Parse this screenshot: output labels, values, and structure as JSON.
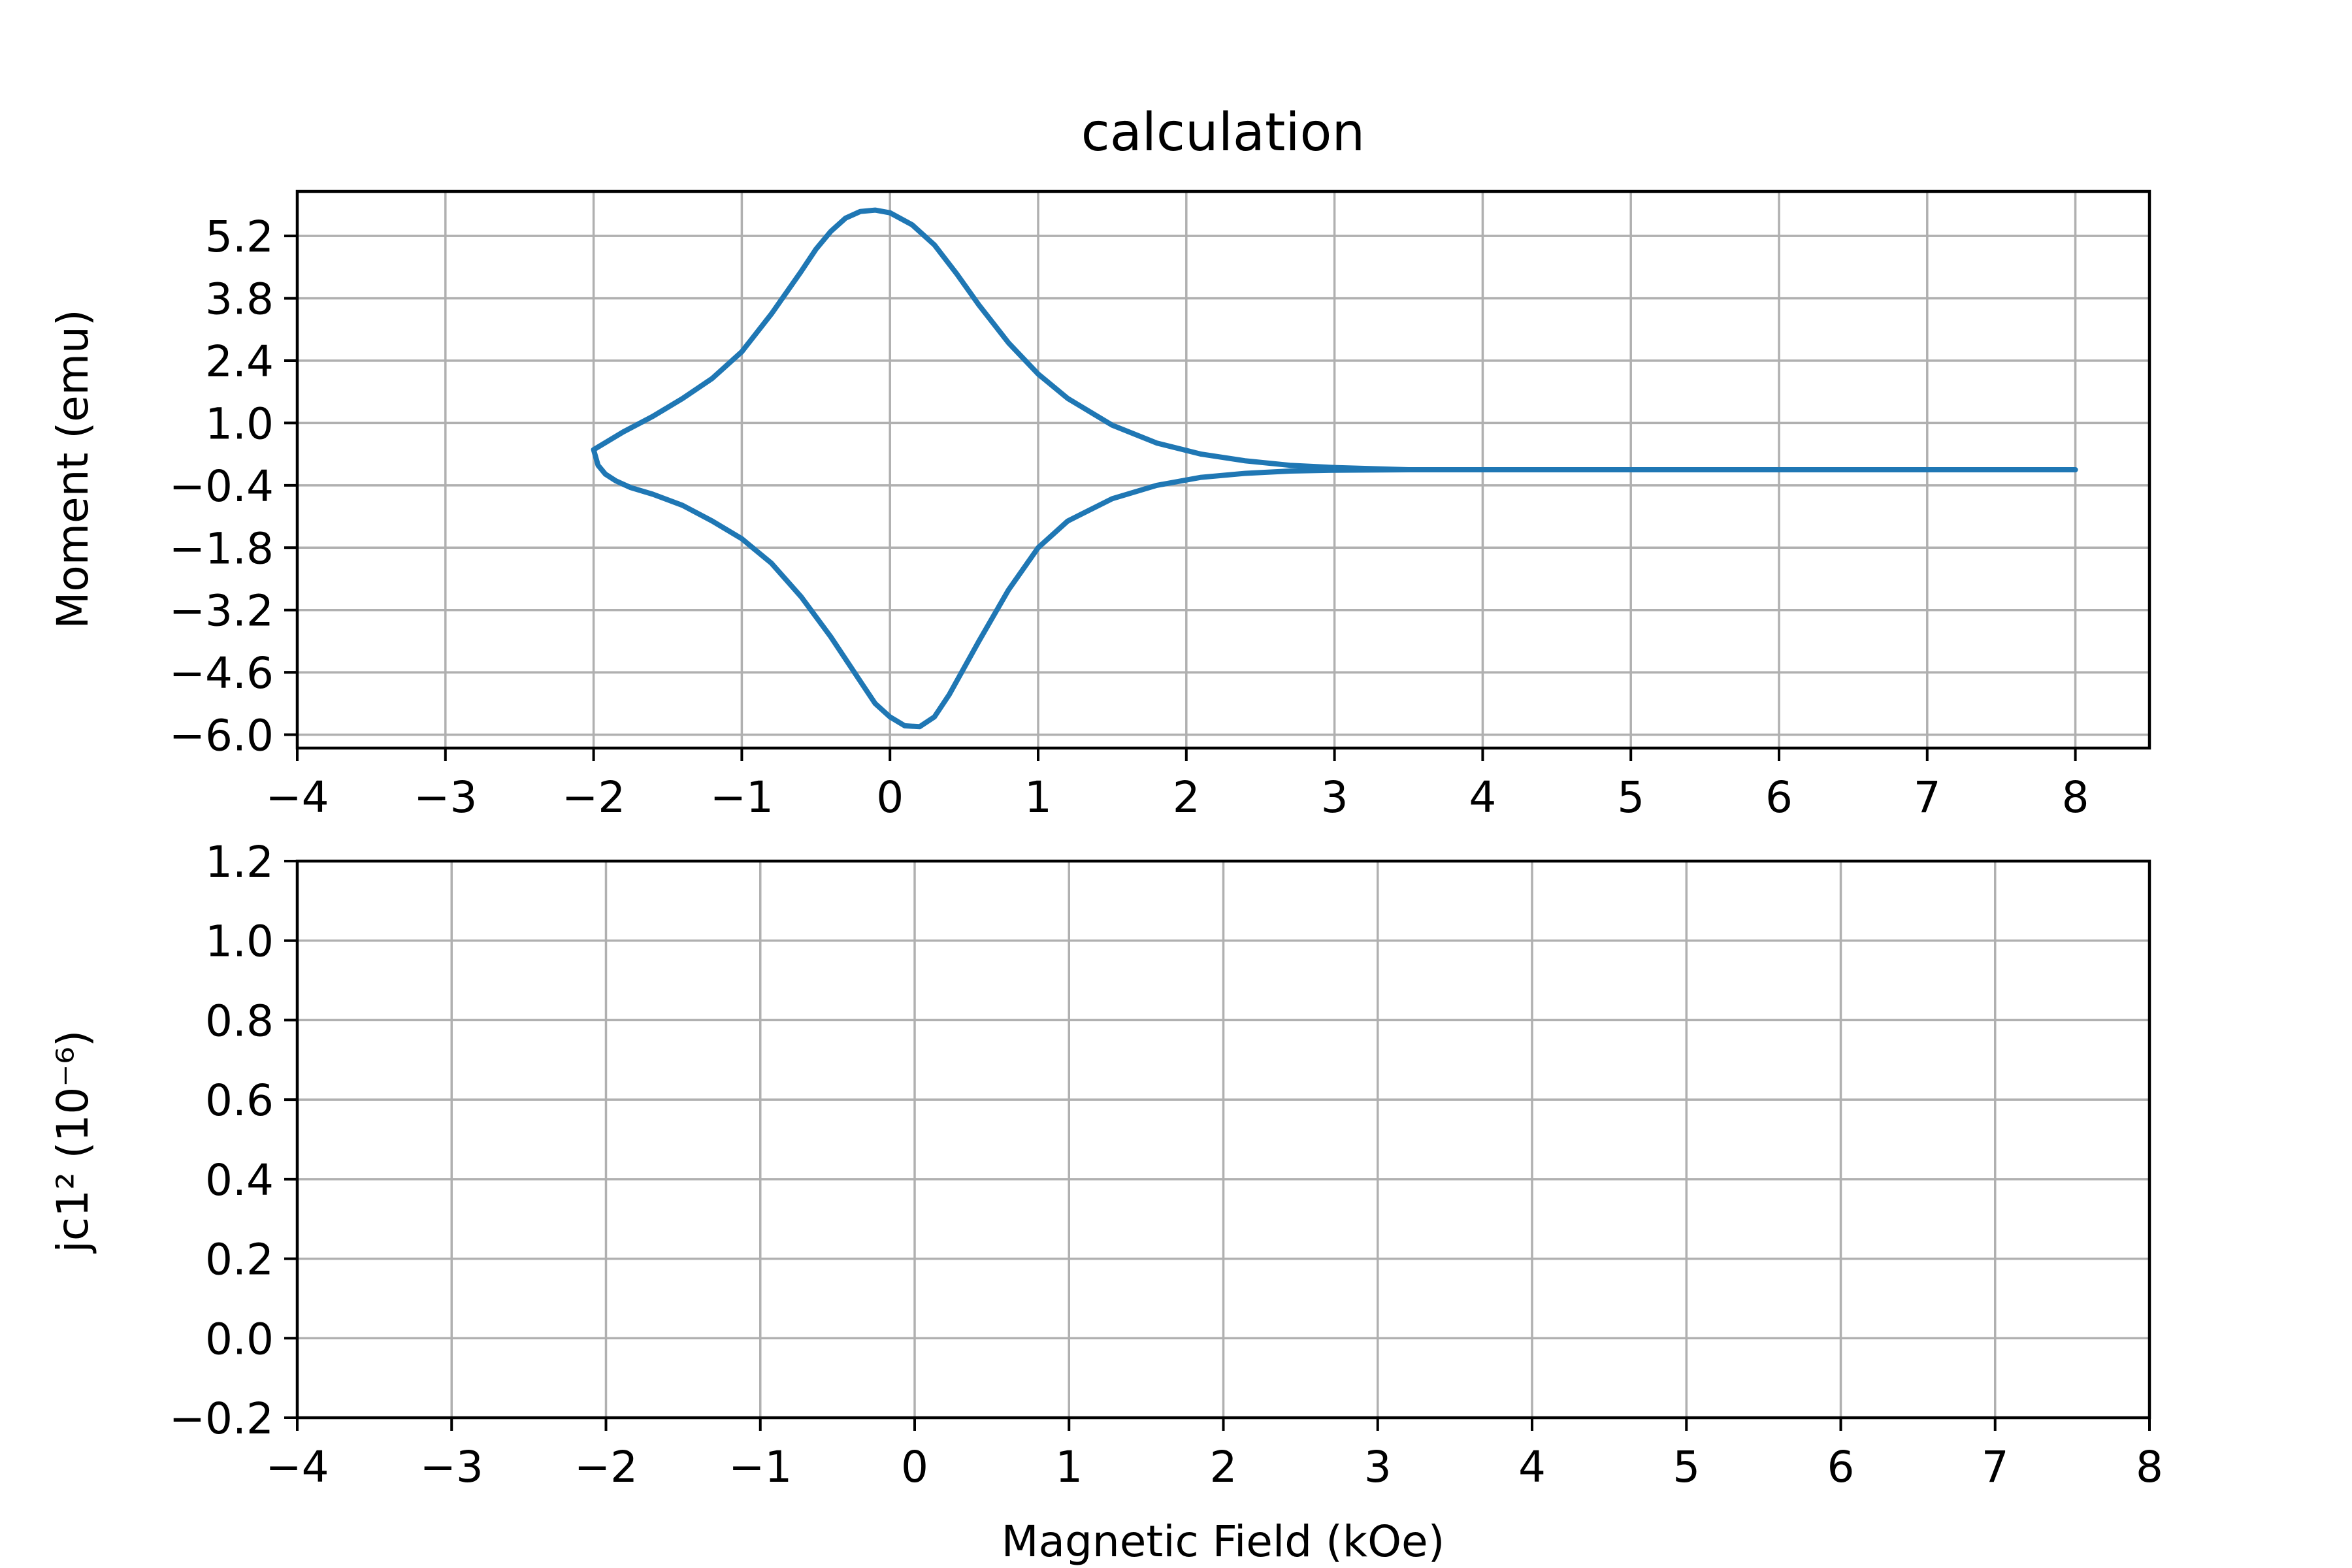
{
  "chart_data": [
    {
      "type": "line",
      "title": "calculation",
      "xlabel": "",
      "ylabel": "Moment (emu)",
      "xlim": [
        -4,
        8.5
      ],
      "ylim": [
        -6.3,
        6.2
      ],
      "xticks": [
        -4,
        -3,
        -2,
        -1,
        0,
        1,
        2,
        3,
        4,
        5,
        6,
        7,
        8
      ],
      "xtick_labels": [
        "−4",
        "−3",
        "−2",
        "−1",
        "0",
        "1",
        "2",
        "3",
        "4",
        "5",
        "6",
        "7",
        "8"
      ],
      "yticks": [
        -6.0,
        -4.6,
        -3.2,
        -1.8,
        -0.4,
        1.0,
        2.4,
        3.8,
        5.2
      ],
      "ytick_labels": [
        "−6.0",
        "−4.6",
        "−3.2",
        "−1.8",
        "−0.4",
        "1.0",
        "2.4",
        "3.8",
        "5.2"
      ],
      "grid": true,
      "line_color": "#1f77b4",
      "series": [
        {
          "x": [
            8.0,
            7.0,
            6.0,
            5.0,
            4.0,
            3.5,
            3.0,
            2.7,
            2.4,
            2.1,
            1.8,
            1.5,
            1.2,
            1.0,
            0.8,
            0.6,
            0.45,
            0.3,
            0.15,
            0.0,
            -0.1,
            -0.2,
            -0.3,
            -0.4,
            -0.5,
            -0.6,
            -0.8,
            -1.0,
            -1.2,
            -1.4,
            -1.6,
            -1.8,
            -1.9,
            -2.0,
            -1.97,
            -1.92,
            -1.85,
            -1.75,
            -1.6,
            -1.4,
            -1.2,
            -1.0,
            -0.8,
            -0.6,
            -0.4,
            -0.2,
            -0.1,
            0.0,
            0.1,
            0.2,
            0.3,
            0.4,
            0.5,
            0.6,
            0.8,
            1.0,
            1.2,
            1.5,
            1.8,
            2.1,
            2.4,
            2.7,
            3.0,
            3.5,
            4.0,
            5.0,
            6.0,
            7.0,
            8.0
          ],
          "y": [
            -0.05,
            -0.05,
            -0.05,
            -0.05,
            -0.05,
            -0.05,
            0.0,
            0.05,
            0.15,
            0.3,
            0.55,
            0.95,
            1.55,
            2.1,
            2.8,
            3.65,
            4.35,
            5.0,
            5.45,
            5.72,
            5.78,
            5.75,
            5.6,
            5.3,
            4.9,
            4.4,
            3.45,
            2.6,
            2.0,
            1.55,
            1.15,
            0.8,
            0.6,
            0.4,
            0.05,
            -0.15,
            -0.3,
            -0.45,
            -0.6,
            -0.85,
            -1.2,
            -1.6,
            -2.15,
            -2.9,
            -3.8,
            -4.8,
            -5.3,
            -5.6,
            -5.8,
            -5.82,
            -5.6,
            -5.1,
            -4.5,
            -3.9,
            -2.75,
            -1.8,
            -1.2,
            -0.7,
            -0.4,
            -0.22,
            -0.13,
            -0.08,
            -0.06,
            -0.05,
            -0.05,
            -0.05,
            -0.05,
            -0.05,
            -0.05
          ]
        }
      ]
    },
    {
      "type": "line",
      "title": "",
      "xlabel": "Magnetic Field (kOe)",
      "ylabel": "jc1² (10⁻⁶)",
      "xlim": [
        -4,
        8
      ],
      "ylim": [
        -0.2,
        1.2
      ],
      "xticks": [
        -4,
        -3,
        -2,
        -1,
        0,
        1,
        2,
        3,
        4,
        5,
        6,
        7,
        8
      ],
      "xtick_labels": [
        "−4",
        "−3",
        "−2",
        "−1",
        "0",
        "1",
        "2",
        "3",
        "4",
        "5",
        "6",
        "7",
        "8"
      ],
      "yticks": [
        -0.2,
        0.0,
        0.2,
        0.4,
        0.6,
        0.8,
        1.0,
        1.2
      ],
      "ytick_labels": [
        "−0.2",
        "0.0",
        "0.2",
        "0.4",
        "0.6",
        "0.8",
        "1.0",
        "1.2"
      ],
      "grid": true,
      "series": []
    }
  ]
}
